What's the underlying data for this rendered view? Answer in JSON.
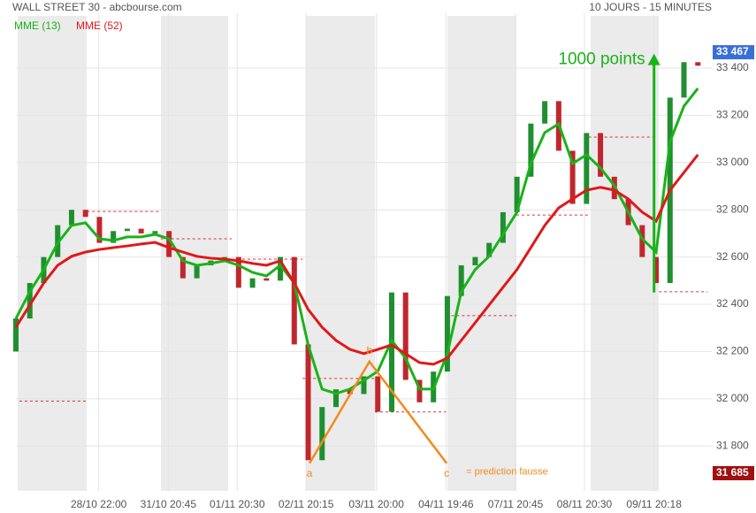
{
  "chart_data": {
    "type": "candlestick",
    "title": "WALL STREET 30 - abcbourse.com",
    "subtitle": "10 JOURS - 15 MINUTES",
    "xlim": [
      0,
      100
    ],
    "ylim": [
      31610,
      33632
    ],
    "grid": true,
    "up_color": "#1f8f2f",
    "down_color": "#c0272d",
    "xticks": [
      {
        "value": 11.9,
        "label": "28/10 22:00"
      },
      {
        "value": 21.9,
        "label": "31/10 20:45"
      },
      {
        "value": 31.8,
        "label": "01/11 20:30"
      },
      {
        "value": 41.7,
        "label": "02/11 20:15"
      },
      {
        "value": 51.8,
        "label": "03/11 20:00"
      },
      {
        "value": 61.8,
        "label": "04/11 19:46"
      },
      {
        "value": 71.8,
        "label": "07/11 20:45"
      },
      {
        "value": 81.7,
        "label": "08/11 20:30"
      },
      {
        "value": 91.7,
        "label": "09/11 20:18"
      }
    ],
    "yticks": [
      {
        "value": 31800,
        "label": "31 800"
      },
      {
        "value": 32000,
        "label": "32 000"
      },
      {
        "value": 32200,
        "label": "32 200"
      },
      {
        "value": 32400,
        "label": "32 400"
      },
      {
        "value": 32600,
        "label": "32 600"
      },
      {
        "value": 32800,
        "label": "32 800"
      },
      {
        "value": 33000,
        "label": "33 000"
      },
      {
        "value": 33200,
        "label": "33 200"
      },
      {
        "value": 33400,
        "label": "33 400"
      }
    ],
    "x": [
      0,
      2,
      4,
      6,
      8,
      10,
      12,
      14,
      16,
      18,
      20,
      22,
      24,
      26,
      28,
      30,
      32,
      34,
      36,
      38,
      40,
      42,
      44,
      46,
      48,
      50,
      52,
      54,
      56,
      58,
      60,
      62,
      64,
      66,
      68,
      70,
      72,
      74,
      76,
      78,
      80,
      82,
      84,
      86,
      88,
      90,
      92,
      94,
      96,
      98
    ],
    "open": [
      32200,
      32340,
      32490,
      32600,
      32735,
      32800,
      32770,
      32660,
      32710,
      32720,
      32700,
      32710,
      32600,
      32510,
      32565,
      32585,
      32600,
      32470,
      32510,
      32500,
      32600,
      32230,
      31740,
      31965,
      32040,
      32020,
      32095,
      31945,
      32450,
      32080,
      31985,
      32115,
      32435,
      32565,
      32600,
      32660,
      32790,
      32940,
      33165,
      33260,
      33050,
      32825,
      33125,
      32940,
      32845,
      32735,
      32600,
      32490,
      33275,
      33425
    ],
    "close": [
      32340,
      32490,
      32600,
      32735,
      32800,
      32770,
      32660,
      32710,
      32720,
      32700,
      32710,
      32600,
      32510,
      32565,
      32585,
      32600,
      32470,
      32510,
      32500,
      32600,
      32230,
      31740,
      31965,
      32040,
      32020,
      32095,
      31945,
      32450,
      32080,
      31985,
      32115,
      32435,
      32565,
      32600,
      32660,
      32790,
      32940,
      33165,
      33260,
      33050,
      32825,
      33125,
      32940,
      32845,
      32735,
      32600,
      32490,
      33275,
      33425,
      33410
    ],
    "series": [
      {
        "name": "MME (13)",
        "color": "#19b319",
        "values": [
          32340,
          32453,
          32547,
          32659,
          32734,
          32745,
          32677,
          32670,
          32685,
          32685,
          32696,
          32677,
          32584,
          32565,
          32573,
          32584,
          32565,
          32535,
          32520,
          32565,
          32490,
          32228,
          32041,
          32022,
          32041,
          32078,
          32116,
          32247,
          32172,
          32041,
          32041,
          32191,
          32453,
          32547,
          32603,
          32696,
          32790,
          32996,
          33127,
          33164,
          32996,
          33033,
          32977,
          32902,
          32790,
          32677,
          32621,
          33089,
          33239,
          33314
        ]
      },
      {
        "name": "MME (52)",
        "color": "#e0181b",
        "values": [
          32303,
          32397,
          32490,
          32565,
          32603,
          32621,
          32632,
          32640,
          32647,
          32655,
          32662,
          32640,
          32621,
          32603,
          32595,
          32591,
          32584,
          32573,
          32565,
          32584,
          32490,
          32378,
          32303,
          32247,
          32209,
          32191,
          32209,
          32228,
          32191,
          32153,
          32146,
          32172,
          32247,
          32322,
          32397,
          32472,
          32547,
          32640,
          32734,
          32808,
          32846,
          32883,
          32895,
          32883,
          32846,
          32790,
          32752,
          32883,
          32958,
          33033
        ]
      }
    ],
    "levels": [
      {
        "from": 0.5,
        "to": 10.2,
        "value": 31990
      },
      {
        "from": 10.2,
        "to": 20.8,
        "value": 32793
      },
      {
        "from": 20.8,
        "to": 31,
        "value": 32677
      },
      {
        "from": 31,
        "to": 41.2,
        "value": 32591
      },
      {
        "from": 41.2,
        "to": 51.6,
        "value": 32086
      },
      {
        "from": 51.6,
        "to": 61.8,
        "value": 31944
      },
      {
        "from": 61.8,
        "to": 71.9,
        "value": 32352
      },
      {
        "from": 71.9,
        "to": 82.3,
        "value": 32778
      },
      {
        "from": 82.3,
        "to": 91.7,
        "value": 33108
      },
      {
        "from": 92.4,
        "to": 99.4,
        "value": 32453
      }
    ],
    "last_price": {
      "value": 33467,
      "label": "33 467"
    },
    "low_price": {
      "value": 31685,
      "label": "31 685"
    },
    "abc": {
      "points": [
        {
          "label": "a",
          "x": 42.2,
          "y": 31727
        },
        {
          "label": "b",
          "x": 50.8,
          "y": 32157
        },
        {
          "label": "c",
          "x": 61.9,
          "y": 31727
        }
      ],
      "note": "= prediction fausse"
    },
    "move": {
      "label": "1000 points",
      "x": 91.7,
      "from": 32450,
      "to": 33450
    }
  }
}
